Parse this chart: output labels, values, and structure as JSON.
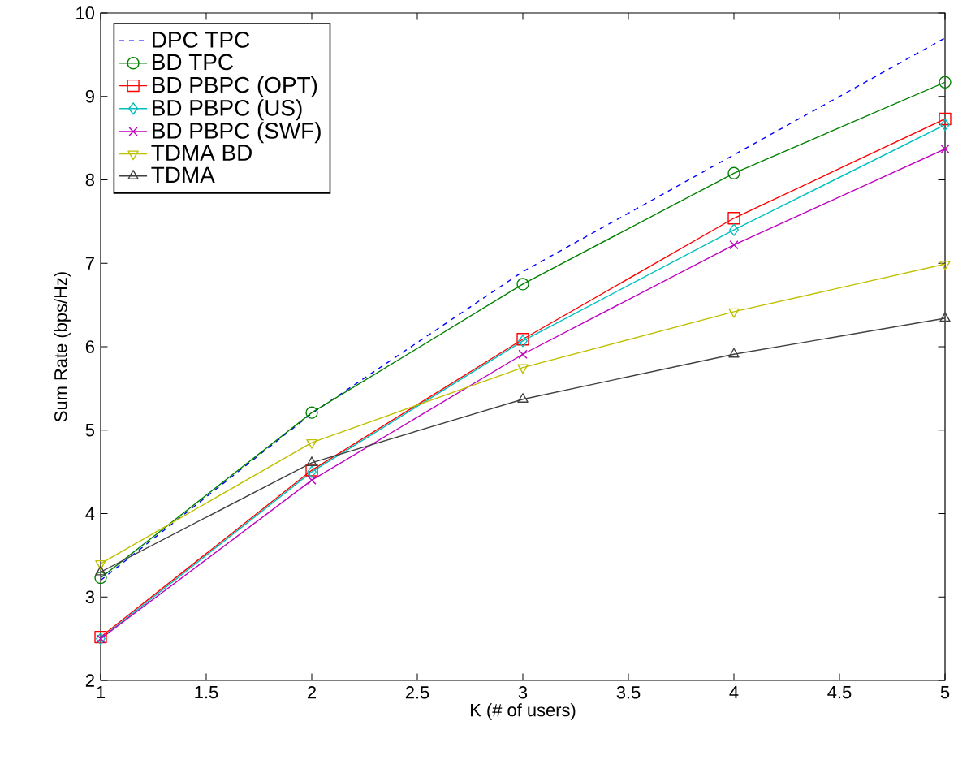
{
  "chart_data": {
    "type": "line",
    "xlabel": "K (# of users)",
    "ylabel": "Sum Rate (bps/Hz)",
    "x": [
      1,
      2,
      3,
      4,
      5
    ],
    "xlim": [
      1,
      5
    ],
    "xticks": [
      1,
      1.5,
      2,
      2.5,
      3,
      3.5,
      4,
      4.5,
      5
    ],
    "ylim": [
      2,
      10
    ],
    "yticks": [
      2,
      3,
      4,
      5,
      6,
      7,
      8,
      9,
      10
    ],
    "legend": "top left",
    "grid": false,
    "series": [
      {
        "name": "DPC TPC",
        "color": "#0000ff",
        "marker": "none",
        "line_style": "dashed",
        "values": [
          3.2,
          5.2,
          6.9,
          8.3,
          9.7
        ]
      },
      {
        "name": "BD TPC",
        "color": "#008000",
        "marker": "circle",
        "line_style": "solid",
        "values": [
          3.23,
          5.21,
          6.75,
          8.08,
          9.17
        ]
      },
      {
        "name": "BD PBPC (OPT)",
        "color": "#ff0000",
        "marker": "square",
        "line_style": "solid",
        "values": [
          2.52,
          4.52,
          6.09,
          7.54,
          8.73
        ]
      },
      {
        "name": "BD PBPC (US)",
        "color": "#00bfbf",
        "marker": "diamond",
        "line_style": "solid",
        "values": [
          2.5,
          4.5,
          6.07,
          7.4,
          8.66
        ]
      },
      {
        "name": "BD PBPC (SWF)",
        "color": "#bf00bf",
        "marker": "cross",
        "line_style": "solid",
        "values": [
          2.5,
          4.4,
          5.91,
          7.22,
          8.37
        ]
      },
      {
        "name": "TDMA BD",
        "color": "#bfbf00",
        "marker": "triangle-down",
        "line_style": "solid",
        "values": [
          3.4,
          4.85,
          5.75,
          6.42,
          6.99
        ]
      },
      {
        "name": "TDMA",
        "color": "#404040",
        "marker": "triangle",
        "line_style": "solid",
        "values": [
          3.3,
          4.61,
          5.37,
          5.91,
          6.34
        ]
      }
    ]
  }
}
